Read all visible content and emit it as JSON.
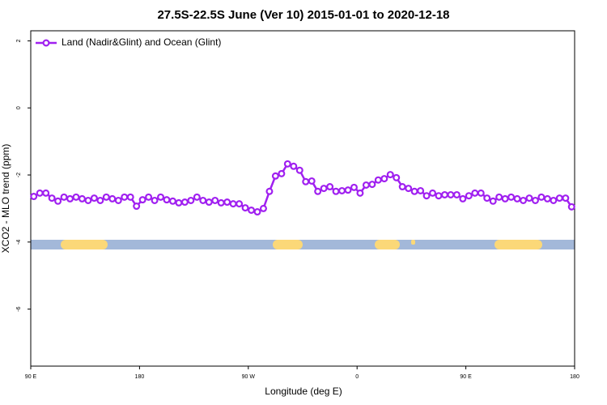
{
  "chart_data": {
    "type": "line",
    "title": "27.5S-22.5S June (Ver 10)   2015-01-01 to 2020-12-18",
    "x_label": "Longitude (deg E)",
    "y_label": "XCO2 - MLO trend (ppm)",
    "xlim": [
      90,
      540
    ],
    "ylim": [
      -7.7,
      2.3
    ],
    "xticks": [
      {
        "value": 90,
        "label": "90 E"
      },
      180,
      {
        "value": 270,
        "label": "90 W"
      },
      {
        "value": 360,
        "label": "0"
      },
      {
        "value": 450,
        "label": "90 E"
      },
      {
        "value": 540,
        "label": "180"
      }
    ],
    "yticks": [
      2,
      0,
      -2,
      -4,
      -6
    ],
    "legend": "top-left",
    "x": [
      92.5,
      97.5,
      102.5,
      107.5,
      112.5,
      117.5,
      122.5,
      127.5,
      132.5,
      137.5,
      142.5,
      147.5,
      152.5,
      157.5,
      162.5,
      167.5,
      172.5,
      177.5,
      182.5,
      187.5,
      192.5,
      197.5,
      202.5,
      207.5,
      212.5,
      217.5,
      222.5,
      227.5,
      232.5,
      237.5,
      242.5,
      247.5,
      252.5,
      257.5,
      262.5,
      267.5,
      272.5,
      277.5,
      282.5,
      287.5,
      292.5,
      297.5,
      302.5,
      307.5,
      312.5,
      317.5,
      322.5,
      327.5,
      332.5,
      337.5,
      342.5,
      347.5,
      352.5,
      357.5,
      362.5,
      367.5,
      372.5,
      377.5,
      382.5,
      387.5,
      392.5,
      397.5,
      402.5,
      407.5,
      412.5,
      417.5,
      422.5,
      427.5,
      432.5,
      437.5,
      442.5,
      447.5,
      452.5,
      457.5,
      462.5,
      467.5,
      472.5,
      477.5,
      482.5,
      487.5,
      492.5,
      497.5,
      502.5,
      507.5,
      512.5,
      517.5,
      522.5,
      527.5,
      532.5,
      537.5
    ],
    "series": [
      {
        "name": "Land (Nadir&Glint) and Ocean (Glint)",
        "color": "#a020f0",
        "values": [
          -2.64,
          -2.54,
          -2.54,
          -2.69,
          -2.78,
          -2.66,
          -2.71,
          -2.66,
          -2.71,
          -2.76,
          -2.69,
          -2.76,
          -2.66,
          -2.71,
          -2.76,
          -2.66,
          -2.66,
          -2.93,
          -2.74,
          -2.66,
          -2.76,
          -2.66,
          -2.74,
          -2.78,
          -2.83,
          -2.81,
          -2.76,
          -2.66,
          -2.76,
          -2.81,
          -2.76,
          -2.83,
          -2.81,
          -2.86,
          -2.86,
          -2.98,
          -3.05,
          -3.1,
          -3.0,
          -2.49,
          -2.03,
          -1.96,
          -1.67,
          -1.74,
          -1.86,
          -2.2,
          -2.18,
          -2.49,
          -2.4,
          -2.35,
          -2.49,
          -2.47,
          -2.45,
          -2.37,
          -2.54,
          -2.3,
          -2.28,
          -2.15,
          -2.11,
          -1.99,
          -2.08,
          -2.35,
          -2.4,
          -2.49,
          -2.47,
          -2.62,
          -2.54,
          -2.62,
          -2.59,
          -2.59,
          -2.59,
          -2.71,
          -2.62,
          -2.54,
          -2.54,
          -2.69,
          -2.78,
          -2.66,
          -2.71,
          -2.66,
          -2.71,
          -2.76,
          -2.69,
          -2.76,
          -2.66,
          -2.71,
          -2.76,
          -2.69,
          -2.69,
          -2.95
        ]
      }
    ]
  }
}
